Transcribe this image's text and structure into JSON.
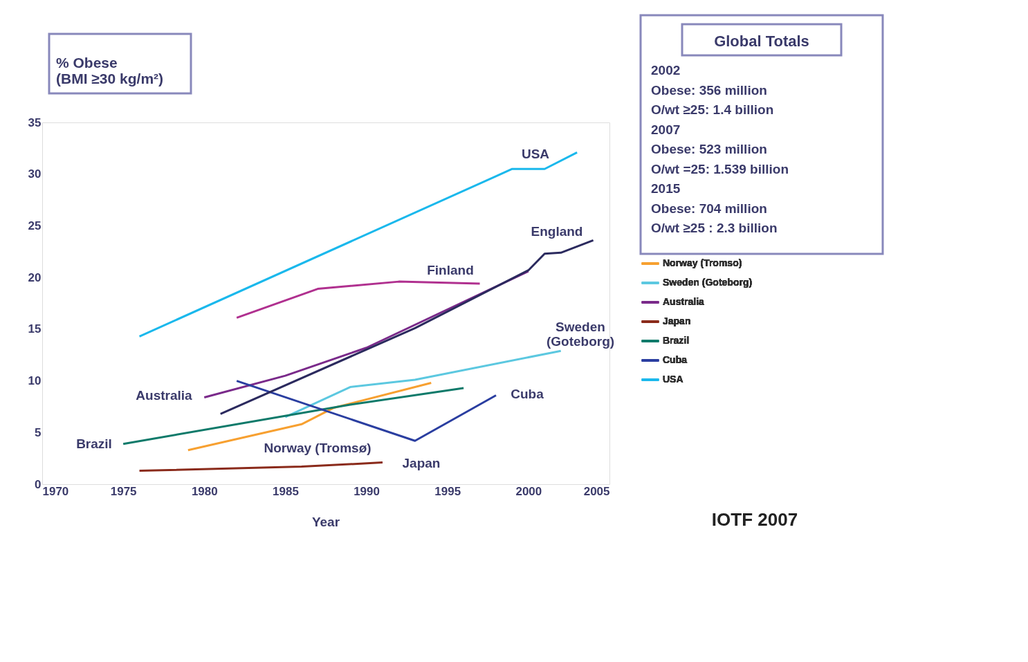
{
  "chart_data": {
    "type": "line",
    "xlabel": "Year",
    "ylabel": "% Obese\n(BMI ≥30 kg/m²)",
    "xlim": [
      1970,
      2005
    ],
    "xticks": [
      1970,
      1975,
      1980,
      1985,
      1990,
      1995,
      2000,
      2005
    ],
    "ylim": [
      0,
      35
    ],
    "yticks": [
      0,
      5,
      10,
      15,
      20,
      25,
      30,
      35
    ],
    "legend": "right",
    "series": [
      {
        "name": "Norway (Tromso)",
        "color": "#f7a030",
        "x": [
          1979,
          1986,
          1988,
          1994
        ],
        "values": [
          3.3,
          5.8,
          7.4,
          9.8
        ]
      },
      {
        "name": "Sweden (Goteborg)",
        "color": "#5cc8e0",
        "x": [
          1985,
          1989,
          1993,
          2002
        ],
        "values": [
          6.5,
          9.4,
          10.1,
          12.9
        ]
      },
      {
        "name": "Australia",
        "color": "#7a2a8a",
        "x": [
          1980,
          1985,
          1990,
          2000
        ],
        "values": [
          8.4,
          10.5,
          13.2,
          20.6
        ]
      },
      {
        "name": "Japan",
        "color": "#8a2a1a",
        "x": [
          1976,
          1986,
          1991
        ],
        "values": [
          1.3,
          1.7,
          2.1
        ]
      },
      {
        "name": "Brazil",
        "color": "#0f7a6a",
        "x": [
          1975,
          1989,
          1996
        ],
        "values": [
          3.9,
          7.7,
          9.3
        ]
      },
      {
        "name": "Cuba",
        "color": "#2a3ea0",
        "x": [
          1982,
          1993,
          1998
        ],
        "values": [
          10.0,
          4.2,
          8.6
        ]
      },
      {
        "name": "USA",
        "color": "#1ab8ec",
        "x": [
          1976,
          1999,
          2001,
          2003
        ],
        "values": [
          14.3,
          30.5,
          30.5,
          32.1
        ]
      },
      {
        "color": "#2b2a5e",
        "x": [
          1981,
          1993,
          2000,
          2001,
          2002,
          2004
        ],
        "values": [
          6.8,
          15.1,
          20.7,
          22.3,
          22.4,
          23.6
        ]
      },
      {
        "color": "#b0308f",
        "x": [
          1982,
          1987,
          1992,
          1997
        ],
        "values": [
          16.1,
          18.9,
          19.6,
          19.4
        ]
      }
    ],
    "annotations": [
      "USA",
      "England",
      "Finland",
      "Sweden\n(Goteborg)",
      "Australia",
      "Cuba",
      "Brazil",
      "Norway (Tromsø)",
      "Japan",
      "Global Totals",
      "2002",
      "Obese: 356 million",
      "O/wt ≥25: 1.4 billion",
      "2007",
      "Obese: 523 million",
      "O/wt =25:  1.539 billion",
      "2015",
      "Obese: 704 million",
      "O/wt ≥25 : 2.3 billion",
      "IOTF 2007"
    ]
  }
}
